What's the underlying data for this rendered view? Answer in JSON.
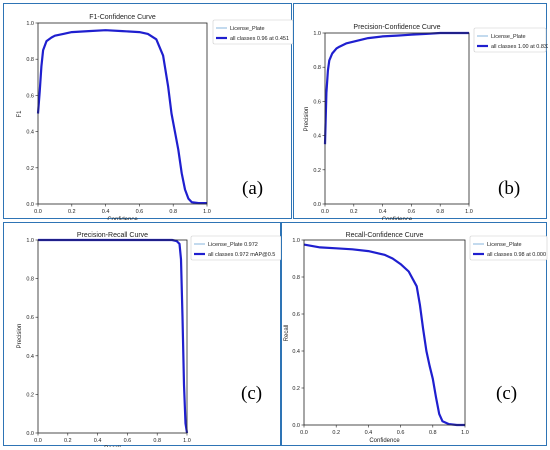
{
  "chart_data": [
    {
      "type": "line",
      "title": "F1-Confidence Curve",
      "xlabel": "Confidence",
      "ylabel": "F1",
      "xlim": [
        0,
        1
      ],
      "ylim": [
        0,
        1
      ],
      "xticks": [
        "0.0",
        "0.2",
        "0.4",
        "0.6",
        "0.8",
        "1.0"
      ],
      "yticks": [
        "0.0",
        "0.2",
        "0.4",
        "0.6",
        "0.8",
        "1.0"
      ],
      "tag": "(a)",
      "legend_position": "upper right",
      "series": [
        {
          "name": "License_Plate",
          "color": "#87b4dc",
          "points": [
            [
              0,
              0.5
            ],
            [
              0.01,
              0.62
            ],
            [
              0.02,
              0.76
            ],
            [
              0.03,
              0.85
            ],
            [
              0.05,
              0.9
            ],
            [
              0.08,
              0.92
            ],
            [
              0.1,
              0.93
            ],
            [
              0.15,
              0.94
            ],
            [
              0.2,
              0.95
            ],
            [
              0.3,
              0.955
            ],
            [
              0.4,
              0.96
            ],
            [
              0.5,
              0.955
            ],
            [
              0.6,
              0.95
            ],
            [
              0.65,
              0.94
            ],
            [
              0.7,
              0.91
            ],
            [
              0.74,
              0.82
            ],
            [
              0.77,
              0.65
            ],
            [
              0.79,
              0.5
            ],
            [
              0.81,
              0.4
            ],
            [
              0.83,
              0.3
            ],
            [
              0.85,
              0.17
            ],
            [
              0.87,
              0.08
            ],
            [
              0.89,
              0.03
            ],
            [
              0.91,
              0.01
            ],
            [
              0.95,
              0.005
            ],
            [
              1,
              0.005
            ]
          ]
        },
        {
          "name": "all classes 0.96 at 0.451",
          "color": "#1f1fcf",
          "points": [
            [
              0,
              0.5
            ],
            [
              0.01,
              0.62
            ],
            [
              0.02,
              0.76
            ],
            [
              0.03,
              0.85
            ],
            [
              0.05,
              0.9
            ],
            [
              0.08,
              0.92
            ],
            [
              0.1,
              0.93
            ],
            [
              0.15,
              0.94
            ],
            [
              0.2,
              0.95
            ],
            [
              0.3,
              0.955
            ],
            [
              0.4,
              0.96
            ],
            [
              0.5,
              0.955
            ],
            [
              0.6,
              0.95
            ],
            [
              0.65,
              0.94
            ],
            [
              0.7,
              0.91
            ],
            [
              0.74,
              0.82
            ],
            [
              0.77,
              0.65
            ],
            [
              0.79,
              0.5
            ],
            [
              0.81,
              0.4
            ],
            [
              0.83,
              0.3
            ],
            [
              0.85,
              0.17
            ],
            [
              0.87,
              0.08
            ],
            [
              0.89,
              0.03
            ],
            [
              0.91,
              0.01
            ],
            [
              0.95,
              0.005
            ],
            [
              1,
              0.005
            ]
          ]
        }
      ]
    },
    {
      "type": "line",
      "title": "Precision-Confidence Curve",
      "xlabel": "Confidence",
      "ylabel": "Precision",
      "xlim": [
        0,
        1
      ],
      "ylim": [
        0,
        1
      ],
      "xticks": [
        "0.0",
        "0.2",
        "0.4",
        "0.6",
        "0.8",
        "1.0"
      ],
      "yticks": [
        "0.0",
        "0.2",
        "0.4",
        "0.6",
        "0.8",
        "1.0"
      ],
      "tag": "(b)",
      "legend_position": "upper right",
      "series": [
        {
          "name": "License_Plate",
          "color": "#87b4dc",
          "points": [
            [
              0,
              0.35
            ],
            [
              0.005,
              0.5
            ],
            [
              0.01,
              0.65
            ],
            [
              0.02,
              0.78
            ],
            [
              0.03,
              0.84
            ],
            [
              0.05,
              0.88
            ],
            [
              0.08,
              0.91
            ],
            [
              0.1,
              0.92
            ],
            [
              0.15,
              0.94
            ],
            [
              0.2,
              0.95
            ],
            [
              0.3,
              0.97
            ],
            [
              0.4,
              0.98
            ],
            [
              0.5,
              0.985
            ],
            [
              0.6,
              0.99
            ],
            [
              0.7,
              0.995
            ],
            [
              0.8,
              1.0
            ],
            [
              0.9,
              1.0
            ],
            [
              1,
              1.0
            ]
          ]
        },
        {
          "name": "all classes 1.00 at 0.832",
          "color": "#1f1fcf",
          "points": [
            [
              0,
              0.35
            ],
            [
              0.005,
              0.5
            ],
            [
              0.01,
              0.65
            ],
            [
              0.02,
              0.78
            ],
            [
              0.03,
              0.84
            ],
            [
              0.05,
              0.88
            ],
            [
              0.08,
              0.91
            ],
            [
              0.1,
              0.92
            ],
            [
              0.15,
              0.94
            ],
            [
              0.2,
              0.95
            ],
            [
              0.3,
              0.97
            ],
            [
              0.4,
              0.98
            ],
            [
              0.5,
              0.985
            ],
            [
              0.6,
              0.99
            ],
            [
              0.7,
              0.995
            ],
            [
              0.8,
              1.0
            ],
            [
              0.9,
              1.0
            ],
            [
              1,
              1.0
            ]
          ]
        }
      ]
    },
    {
      "type": "line",
      "title": "Precision-Recall Curve",
      "xlabel": "Recall",
      "ylabel": "Precision",
      "xlim": [
        0,
        1
      ],
      "ylim": [
        0,
        1
      ],
      "xticks": [
        "0.0",
        "0.2",
        "0.4",
        "0.6",
        "0.8",
        "1.0"
      ],
      "yticks": [
        "0.0",
        "0.2",
        "0.4",
        "0.6",
        "0.8",
        "1.0"
      ],
      "tag": "(c)",
      "legend_position": "upper right",
      "series": [
        {
          "name": "License_Plate 0.972",
          "color": "#87b4dc",
          "points": [
            [
              0,
              1.0
            ],
            [
              0.5,
              1.0
            ],
            [
              0.9,
              1.0
            ],
            [
              0.93,
              0.995
            ],
            [
              0.95,
              0.98
            ],
            [
              0.96,
              0.9
            ],
            [
              0.97,
              0.6
            ],
            [
              0.98,
              0.25
            ],
            [
              0.99,
              0.05
            ],
            [
              1.0,
              0.0
            ]
          ]
        },
        {
          "name": "all classes 0.972 mAP@0.5",
          "color": "#1f1fcf",
          "points": [
            [
              0,
              1.0
            ],
            [
              0.5,
              1.0
            ],
            [
              0.9,
              1.0
            ],
            [
              0.93,
              0.995
            ],
            [
              0.95,
              0.98
            ],
            [
              0.96,
              0.9
            ],
            [
              0.97,
              0.6
            ],
            [
              0.98,
              0.25
            ],
            [
              0.99,
              0.05
            ],
            [
              1.0,
              0.0
            ]
          ]
        }
      ]
    },
    {
      "type": "line",
      "title": "Recall-Confidence Curve",
      "xlabel": "Confidence",
      "ylabel": "Recall",
      "xlim": [
        0,
        1
      ],
      "ylim": [
        0,
        1
      ],
      "xticks": [
        "0.0",
        "0.2",
        "0.4",
        "0.6",
        "0.8",
        "1.0"
      ],
      "yticks": [
        "0.0",
        "0.2",
        "0.4",
        "0.6",
        "0.8",
        "1.0"
      ],
      "tag": "(c)",
      "legend_position": "upper right",
      "series": [
        {
          "name": "License_Plate",
          "color": "#87b4dc",
          "points": [
            [
              0,
              0.975
            ],
            [
              0.1,
              0.96
            ],
            [
              0.2,
              0.955
            ],
            [
              0.3,
              0.95
            ],
            [
              0.4,
              0.94
            ],
            [
              0.5,
              0.92
            ],
            [
              0.55,
              0.9
            ],
            [
              0.6,
              0.87
            ],
            [
              0.65,
              0.83
            ],
            [
              0.7,
              0.75
            ],
            [
              0.72,
              0.65
            ],
            [
              0.74,
              0.52
            ],
            [
              0.76,
              0.4
            ],
            [
              0.78,
              0.32
            ],
            [
              0.8,
              0.25
            ],
            [
              0.82,
              0.15
            ],
            [
              0.84,
              0.06
            ],
            [
              0.86,
              0.02
            ],
            [
              0.9,
              0.005
            ],
            [
              0.95,
              0.0
            ],
            [
              1.0,
              0.0
            ]
          ]
        },
        {
          "name": "all classes 0.98 at 0.000",
          "color": "#1f1fcf",
          "points": [
            [
              0,
              0.975
            ],
            [
              0.1,
              0.96
            ],
            [
              0.2,
              0.955
            ],
            [
              0.3,
              0.95
            ],
            [
              0.4,
              0.94
            ],
            [
              0.5,
              0.92
            ],
            [
              0.55,
              0.9
            ],
            [
              0.6,
              0.87
            ],
            [
              0.65,
              0.83
            ],
            [
              0.7,
              0.75
            ],
            [
              0.72,
              0.65
            ],
            [
              0.74,
              0.52
            ],
            [
              0.76,
              0.4
            ],
            [
              0.78,
              0.32
            ],
            [
              0.8,
              0.25
            ],
            [
              0.82,
              0.15
            ],
            [
              0.84,
              0.06
            ],
            [
              0.86,
              0.02
            ],
            [
              0.9,
              0.005
            ],
            [
              0.95,
              0.0
            ],
            [
              1.0,
              0.0
            ]
          ]
        }
      ]
    }
  ]
}
